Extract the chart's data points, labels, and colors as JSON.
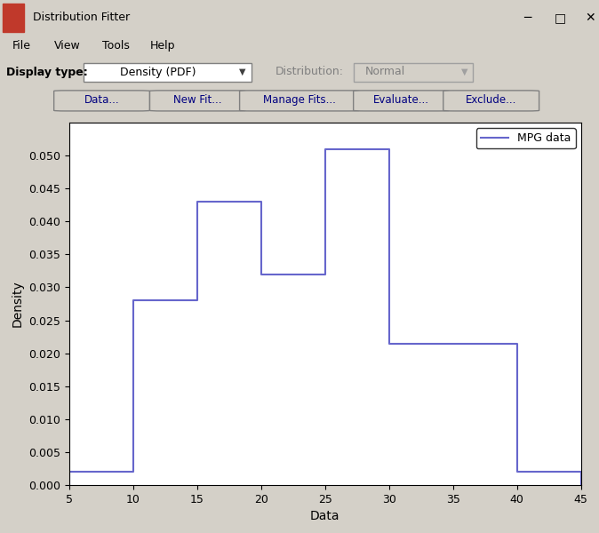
{
  "title": "Distribution Fitter",
  "bin_edges": [
    5,
    10,
    15,
    20,
    25,
    30,
    35,
    40,
    45
  ],
  "densities": [
    0.002,
    0.028,
    0.043,
    0.032,
    0.051,
    0.0215,
    0.0215,
    0.002
  ],
  "hist_color": "#6666cc",
  "hist_linewidth": 1.5,
  "xlabel": "Data",
  "ylabel": "Density",
  "xlim": [
    5,
    45
  ],
  "ylim": [
    0,
    0.055
  ],
  "xticks": [
    5,
    10,
    15,
    20,
    25,
    30,
    35,
    40,
    45
  ],
  "yticks": [
    0,
    0.005,
    0.01,
    0.015,
    0.02,
    0.025,
    0.03,
    0.035,
    0.04,
    0.045,
    0.05
  ],
  "legend_label": "MPG data",
  "bg_color": "#d4d0c8",
  "plot_bg": "#ffffff",
  "menu_items": [
    "File",
    "View",
    "Tools",
    "Help"
  ],
  "display_type": "Density (PDF)",
  "distribution": "Normal",
  "buttons": [
    "Data...",
    "New Fit...",
    "Manage Fits...",
    "Evaluate...",
    "Exclude..."
  ]
}
